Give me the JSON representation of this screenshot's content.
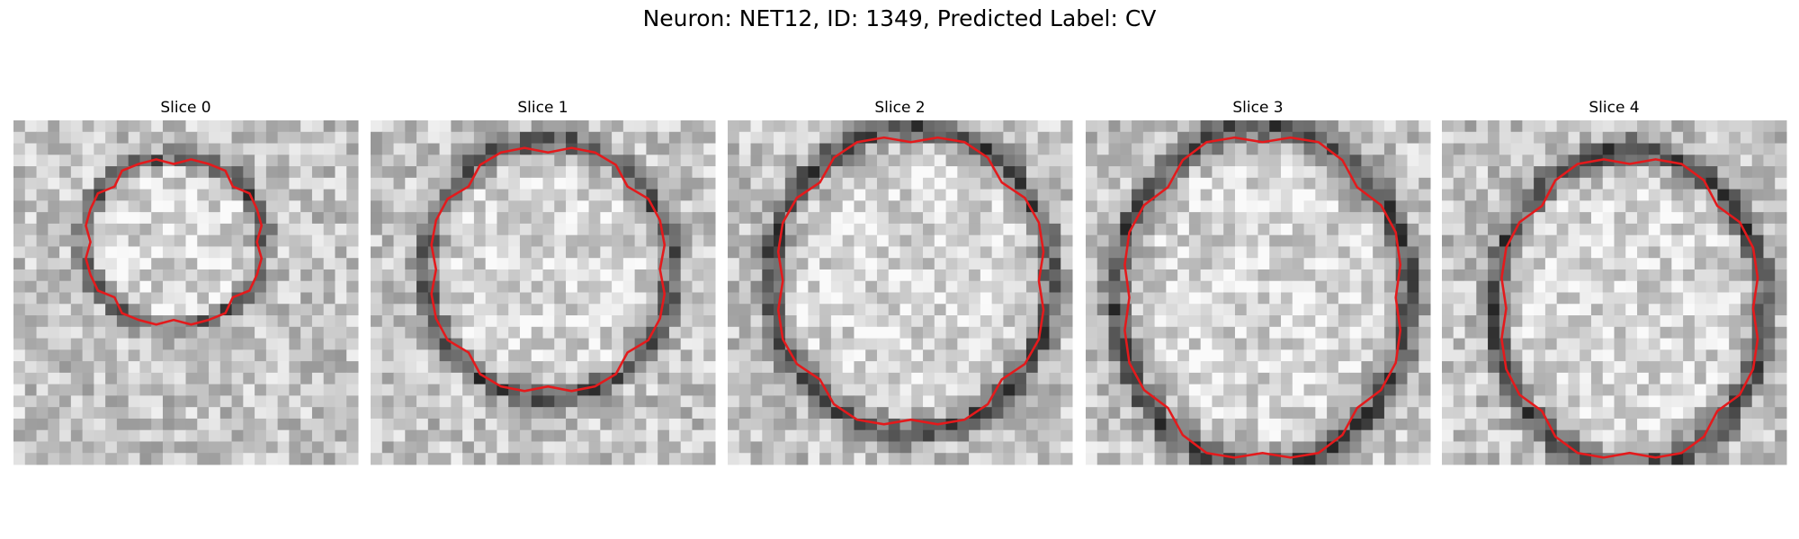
{
  "title": "Neuron: NET12, ID: 1349, Predicted Label: CV",
  "panels": [
    {
      "title": "Slice 0"
    },
    {
      "title": "Slice 1"
    },
    {
      "title": "Slice 2"
    },
    {
      "title": "Slice 3"
    },
    {
      "title": "Slice 4"
    }
  ]
}
